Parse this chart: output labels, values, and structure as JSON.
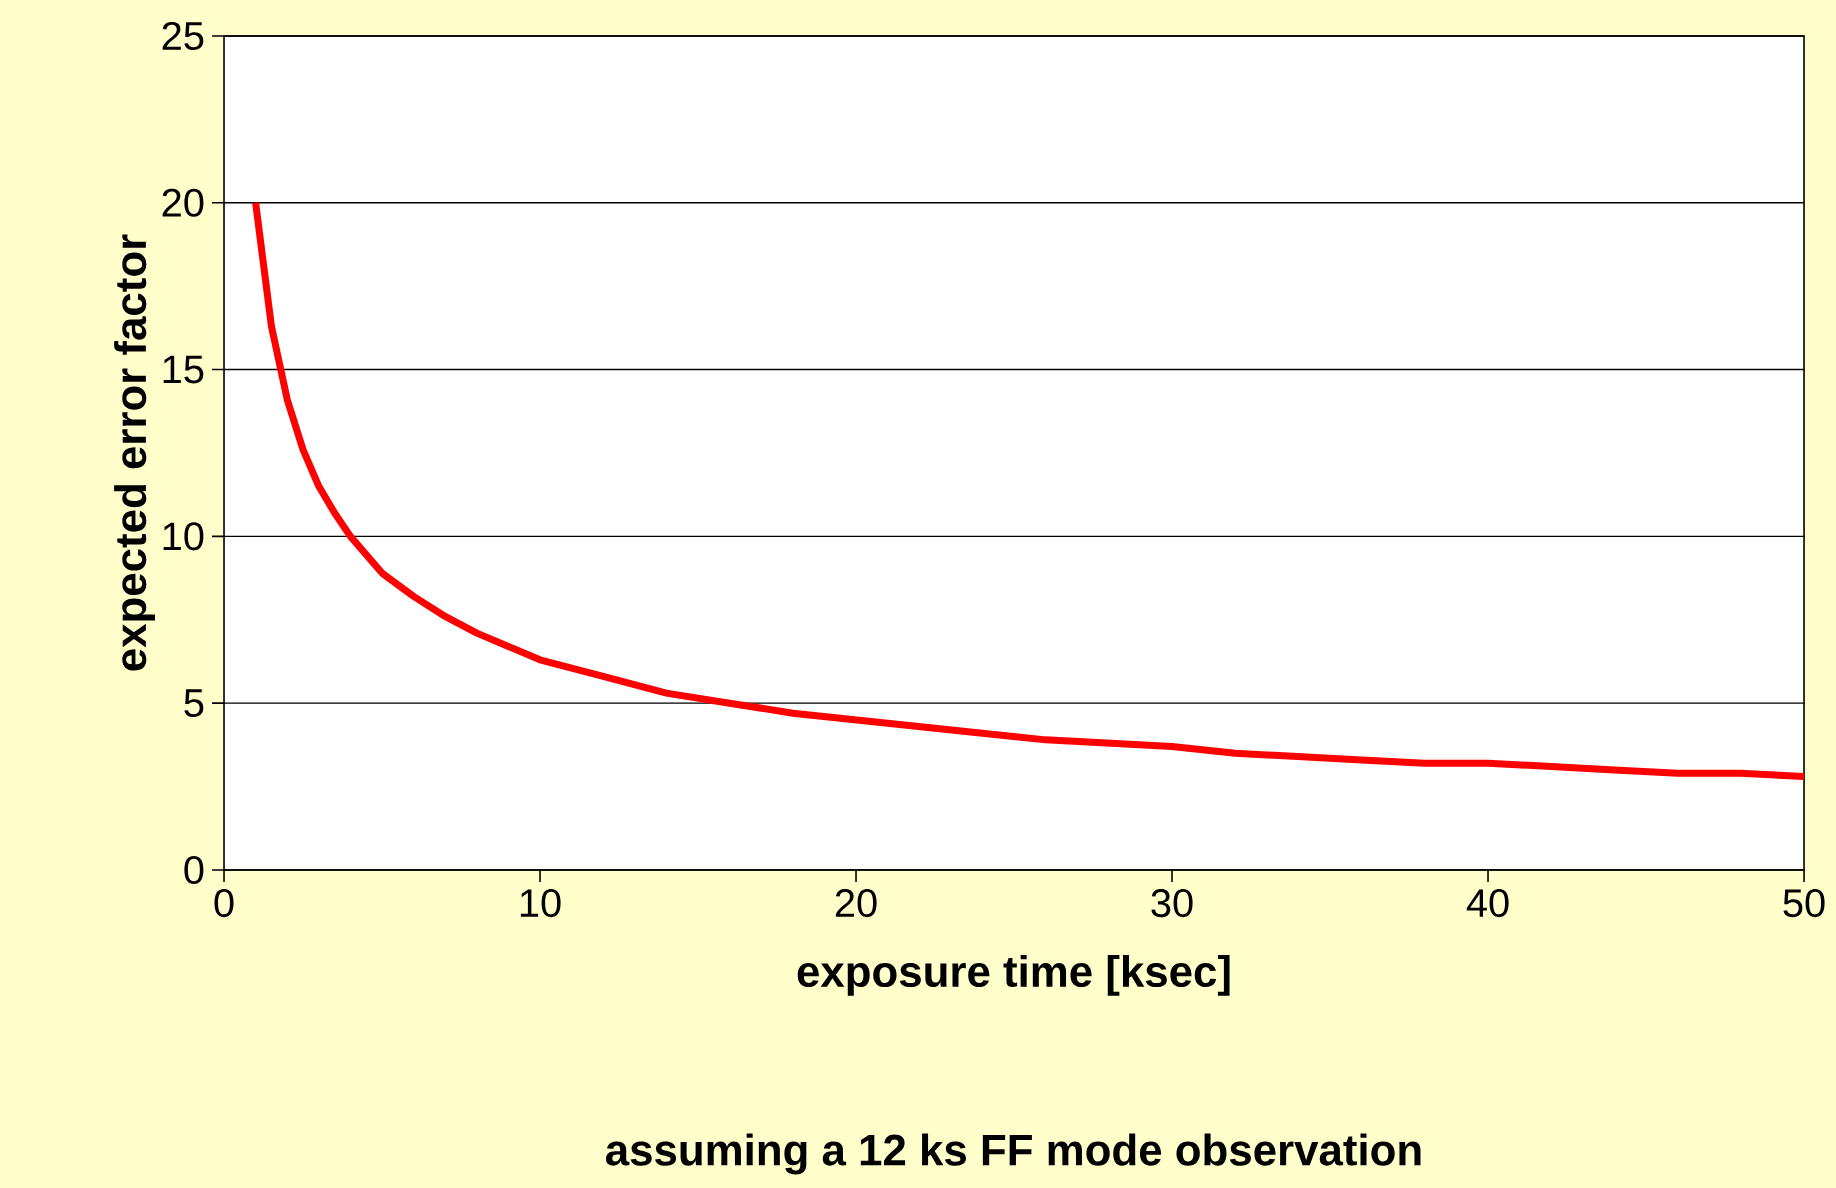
{
  "chart_data": {
    "type": "line",
    "xlabel": "exposure time [ksec]",
    "ylabel": "expected error factor",
    "annotations": [
      "assuming a 12 ks FF mode observation"
    ],
    "x": [
      1,
      1.5,
      2,
      2.5,
      3,
      3.5,
      4,
      5,
      6,
      7,
      8,
      9,
      10,
      12,
      14,
      16,
      18,
      20,
      22,
      24,
      26,
      28,
      30,
      32,
      34,
      36,
      38,
      40,
      42,
      44,
      46,
      48,
      50
    ],
    "series": [
      {
        "color": "#ff0000",
        "values": [
          20,
          16.3,
          14.1,
          12.6,
          11.5,
          10.7,
          10,
          8.9,
          8.2,
          7.6,
          7.1,
          6.7,
          6.3,
          5.8,
          5.3,
          5,
          4.7,
          4.5,
          4.3,
          4.1,
          3.9,
          3.8,
          3.7,
          3.5,
          3.4,
          3.3,
          3.2,
          3.2,
          3.1,
          3,
          2.9,
          2.9,
          2.8
        ]
      }
    ],
    "xlim": [
      0,
      50
    ],
    "ylim": [
      0,
      25
    ],
    "xticks": [
      0,
      10,
      20,
      30,
      40,
      50
    ],
    "yticks": [
      0,
      5,
      10,
      15,
      20,
      25
    ],
    "grid": "y",
    "marker": "none",
    "line_style": "solid"
  }
}
